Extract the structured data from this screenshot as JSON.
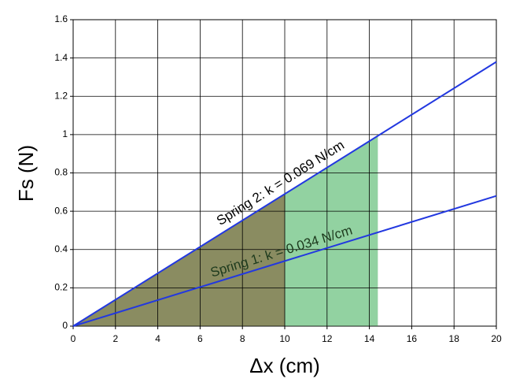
{
  "chart_data": {
    "type": "line",
    "xlabel": "Δx (cm)",
    "ylabel": "Fs (N)",
    "xlim": [
      0,
      20
    ],
    "ylim": [
      0,
      1.6
    ],
    "xticks": [
      0,
      2,
      4,
      6,
      8,
      10,
      12,
      14,
      16,
      18,
      20
    ],
    "yticks": [
      0,
      0.2,
      0.4,
      0.6,
      0.8,
      1,
      1.2,
      1.4,
      1.6
    ],
    "grid": true,
    "series": [
      {
        "color": "#2238e0",
        "x": [
          0,
          20
        ],
        "values": [
          0,
          0.68
        ]
      },
      {
        "color": "#2238e0",
        "x": [
          0,
          20
        ],
        "values": [
          0,
          1.38
        ]
      }
    ],
    "areas": [
      {
        "color": "#92d2a1",
        "x": [
          0,
          14.4
        ],
        "values": [
          0,
          0.99
        ]
      },
      {
        "color": "#8a8c61",
        "x": [
          0,
          10
        ],
        "values": [
          0,
          0.69
        ]
      }
    ],
    "annotations": [
      {
        "text": "Spring 2: k = 0.069 N/cm"
      },
      {
        "text": "Spring 1: k = 0.034 N/cm"
      }
    ]
  }
}
